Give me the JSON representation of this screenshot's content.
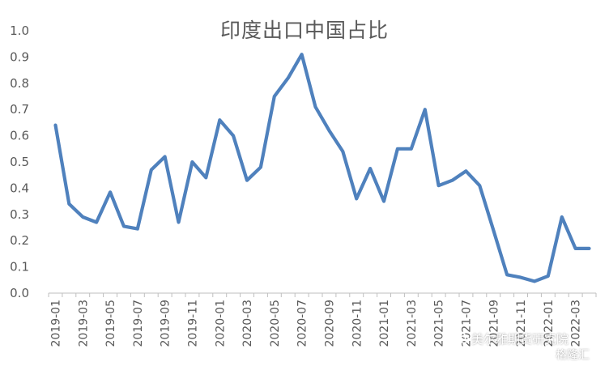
{
  "chart_data": {
    "type": "line",
    "title": "印度出口中国占比",
    "xlabel": "",
    "ylabel": "",
    "ylim": [
      0.0,
      1.0
    ],
    "yticks": [
      "0.0",
      "0.1",
      "0.2",
      "0.3",
      "0.4",
      "0.5",
      "0.6",
      "0.7",
      "0.8",
      "0.9",
      "1.0"
    ],
    "grid": false,
    "legend": "none",
    "line_color": "#4F81BD",
    "x": [
      "2019-01",
      "2019-02",
      "2019-03",
      "2019-04",
      "2019-05",
      "2019-06",
      "2019-07",
      "2019-08",
      "2019-09",
      "2019-10",
      "2019-11",
      "2019-12",
      "2020-01",
      "2020-02",
      "2020-03",
      "2020-04",
      "2020-05",
      "2020-06",
      "2020-07",
      "2020-08",
      "2020-09",
      "2020-10",
      "2020-11",
      "2020-12",
      "2021-01",
      "2021-02",
      "2021-03",
      "2021-04",
      "2021-05",
      "2021-06",
      "2021-07",
      "2021-08",
      "2021-09",
      "2021-10",
      "2021-11",
      "2021-12",
      "2022-01",
      "2022-02",
      "2022-03",
      "2022-04"
    ],
    "xtick_labels": [
      "2019-01",
      "2019-03",
      "2019-05",
      "2019-07",
      "2019-09",
      "2019-11",
      "2020-01",
      "2020-03",
      "2020-05",
      "2020-07",
      "2020-09",
      "2020-11",
      "2021-01",
      "2021-03",
      "2021-05",
      "2021-07",
      "2021-09",
      "2021-11",
      "2022-01",
      "2022-03"
    ],
    "series": [
      {
        "values": [
          0.64,
          0.34,
          0.29,
          0.27,
          0.385,
          0.255,
          0.245,
          0.47,
          0.52,
          0.27,
          0.5,
          0.44,
          0.66,
          0.6,
          0.43,
          0.48,
          0.75,
          0.82,
          0.91,
          0.71,
          0.62,
          0.54,
          0.36,
          0.475,
          0.35,
          0.55,
          0.55,
          0.7,
          0.41,
          0.43,
          0.465,
          0.41,
          0.24,
          0.07,
          0.06,
          0.045,
          0.065,
          0.29,
          0.17,
          0.17
        ]
      }
    ]
  },
  "watermark": {
    "text1": "美尔雅期货研究院",
    "text2": "格隆汇"
  }
}
